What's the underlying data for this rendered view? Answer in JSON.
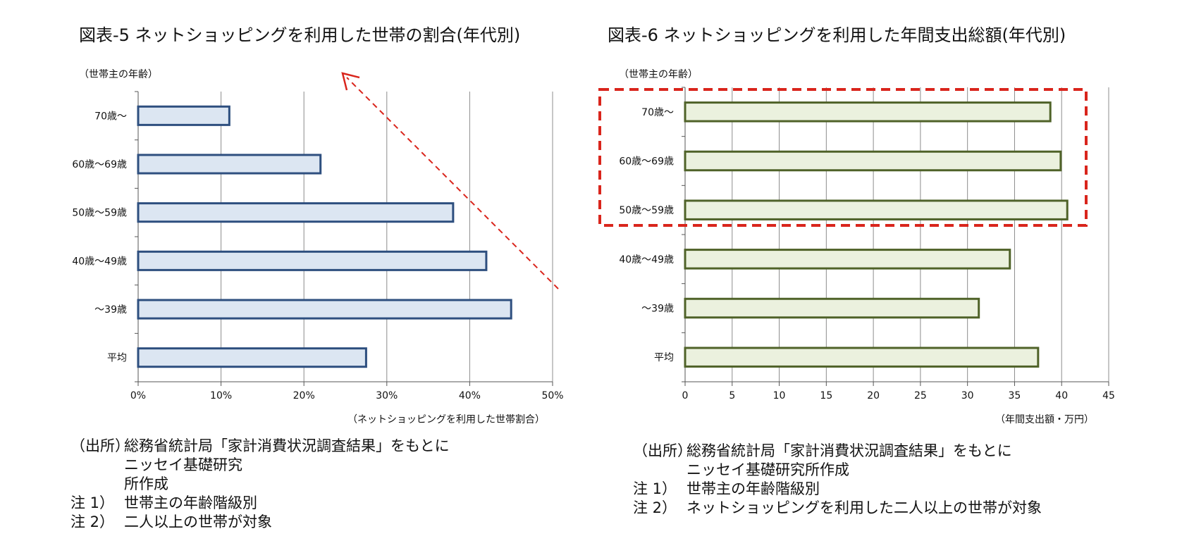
{
  "chart_data": [
    {
      "type": "bar",
      "orientation": "horizontal",
      "title": "図表-5  ネットショッピングを利用した世帯の割合(年代別)",
      "y_axis_note": "（世帯主の年齢）",
      "x_axis_note": "（ネットショッピングを利用した世帯割合）",
      "categories": [
        "70歳～",
        "60歳～69歳",
        "50歳～59歳",
        "40歳～49歳",
        "～39歳",
        "平均"
      ],
      "values": [
        11.0,
        22.0,
        38.0,
        42.0,
        45.0,
        27.5
      ],
      "unit": "%",
      "xlim": [
        0,
        50
      ],
      "x_ticks": [
        "0%",
        "10%",
        "20%",
        "30%",
        "40%",
        "50%"
      ],
      "grid": true,
      "colors": {
        "fill": "#dce6f2",
        "stroke": "#2e4f7f"
      },
      "annotation": "red dashed arrow pointing upward-left"
    },
    {
      "type": "bar",
      "orientation": "horizontal",
      "title": "図表-6  ネットショッピングを利用した年間支出総額(年代別)",
      "y_axis_note": "（世帯主の年齢）",
      "x_axis_note": "（年間支出額・万円）",
      "categories": [
        "70歳～",
        "60歳～69歳",
        "50歳～59歳",
        "40歳～49歳",
        "～39歳",
        "平均"
      ],
      "values": [
        38.8,
        39.9,
        40.6,
        34.5,
        31.2,
        37.5
      ],
      "unit": "万円",
      "xlim": [
        0,
        45
      ],
      "x_ticks": [
        "0",
        "5",
        "10",
        "15",
        "20",
        "25",
        "30",
        "35",
        "40",
        "45"
      ],
      "grid": true,
      "colors": {
        "fill": "#ebf1de",
        "stroke": "#4f6228"
      },
      "annotation": "red dashed box highlighting 70歳～, 60歳～69歳, 50歳～59歳"
    }
  ],
  "notes_left": [
    {
      "label": "（出所）",
      "text": "総務省統計局「家計消費状況調査結果」をもとに"
    },
    {
      "label": "",
      "text": "ニッセイ基礎研究"
    },
    {
      "label": "",
      "text": "所作成"
    },
    {
      "label": "注 1）",
      "text": "世帯主の年齢階級別"
    },
    {
      "label": "注 2）",
      "text": "二人以上の世帯が対象"
    }
  ],
  "notes_right": [
    {
      "label": "（出所）",
      "text": "総務省統計局「家計消費状況調査結果」をもとに"
    },
    {
      "label": "",
      "text": "ニッセイ基礎研究所作成"
    },
    {
      "label": "注 1）",
      "text": "世帯主の年齢階級別"
    },
    {
      "label": "注 2）",
      "text": "ネットショッピングを利用した二人以上の世帯が対象"
    }
  ],
  "annotation_color": "#d9251c"
}
